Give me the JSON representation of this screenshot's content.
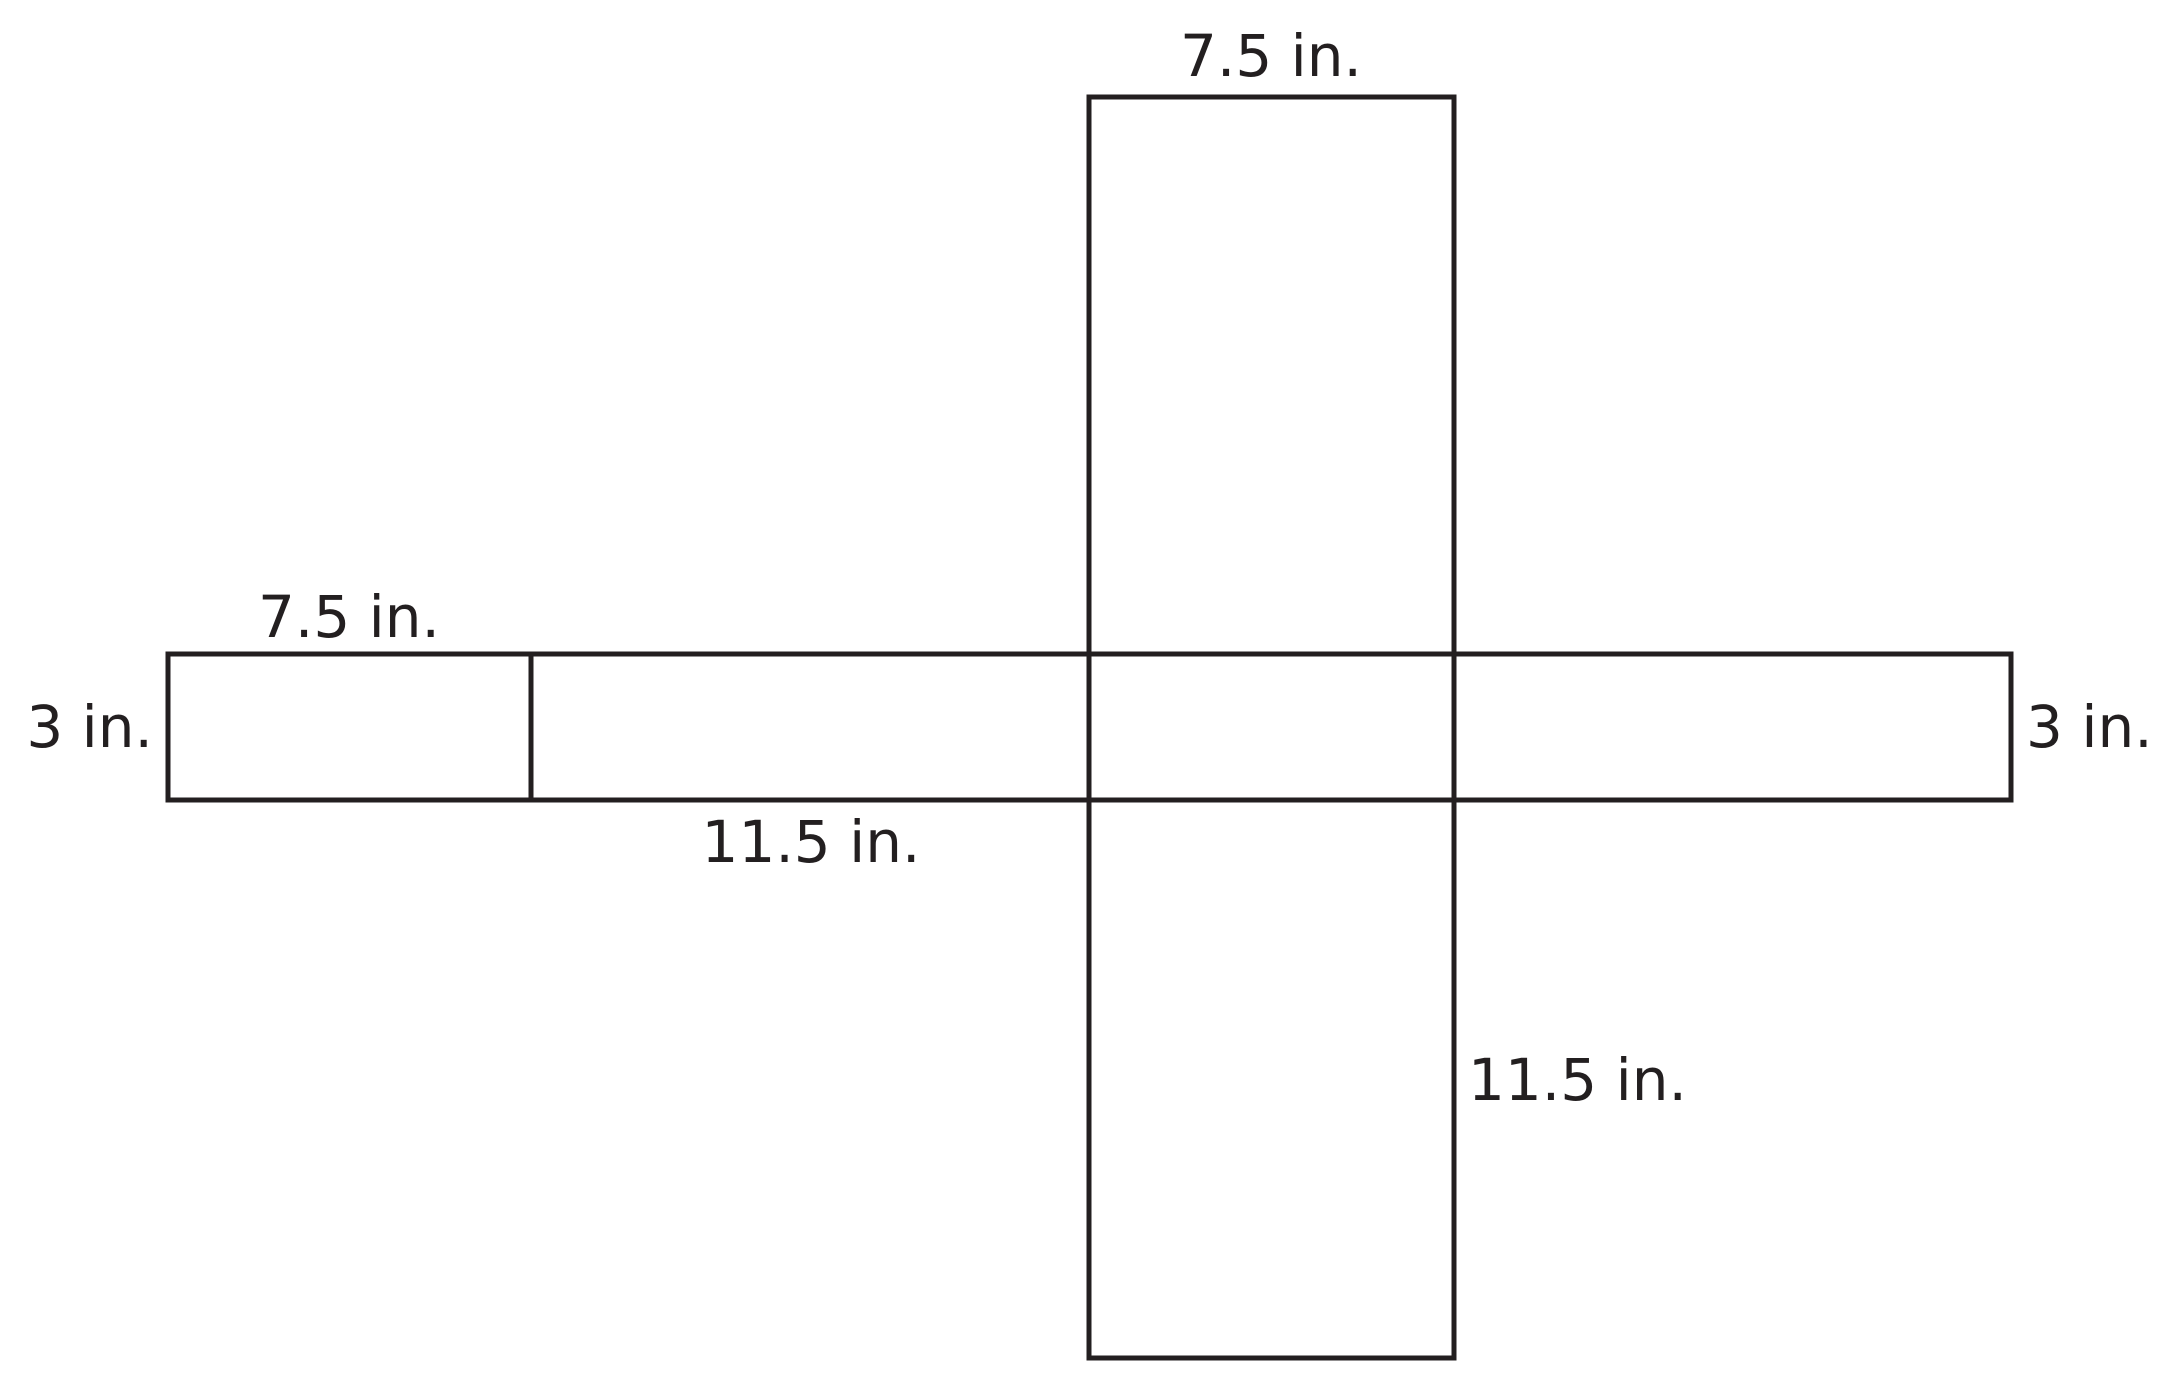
{
  "diagram": {
    "type": "rectangular prism net",
    "stroke_color": "#231f20",
    "background": "#ffffff",
    "labels": {
      "top_width": "7.5 in.",
      "left_width": "7.5 in.",
      "left_height": "3 in.",
      "right_height": "3 in.",
      "strip_length": "11.5 in.",
      "bottom_length": "11.5 in."
    }
  }
}
